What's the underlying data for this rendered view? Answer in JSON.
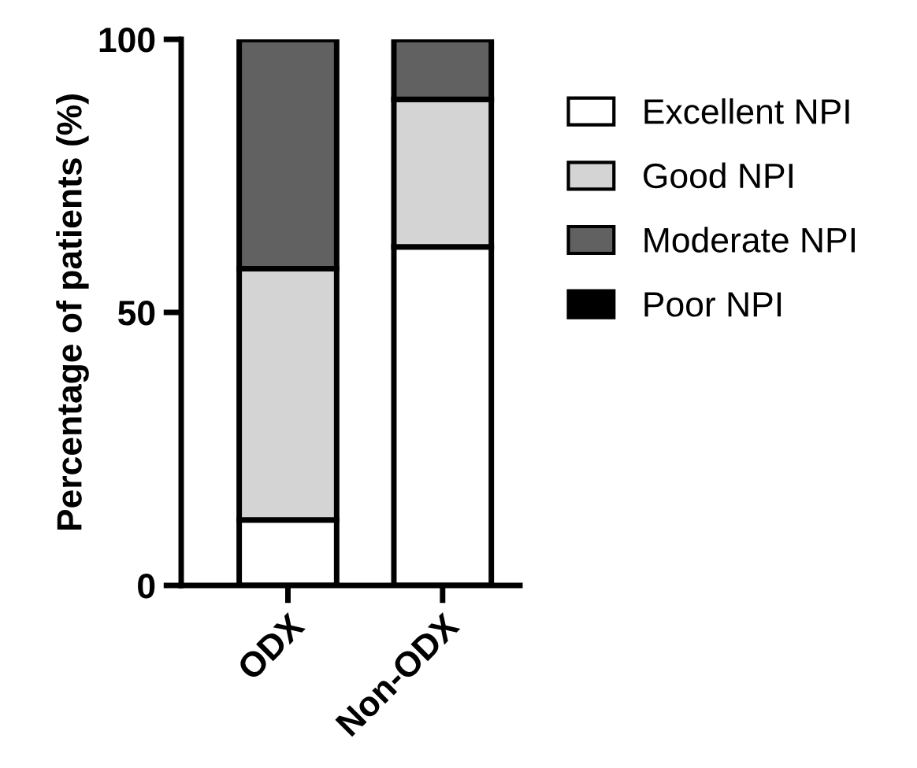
{
  "chart_data": {
    "type": "bar",
    "stacked": true,
    "ylabel": "Percentage of patients (%)",
    "categories": [
      "ODX",
      "Non-ODX"
    ],
    "series": [
      {
        "name": "Excellent NPI",
        "color": "#ffffff",
        "values": [
          12,
          62
        ]
      },
      {
        "name": "Good NPI",
        "color": "#d4d4d4",
        "values": [
          46,
          27
        ]
      },
      {
        "name": "Moderate NPI",
        "color": "#616161",
        "values": [
          42,
          11
        ]
      },
      {
        "name": "Poor NPI",
        "color": "#000000",
        "values": [
          0,
          0
        ]
      }
    ],
    "ylim": [
      0,
      100
    ],
    "yticks": [
      0,
      50,
      100
    ],
    "grid": false,
    "legend": "right"
  }
}
